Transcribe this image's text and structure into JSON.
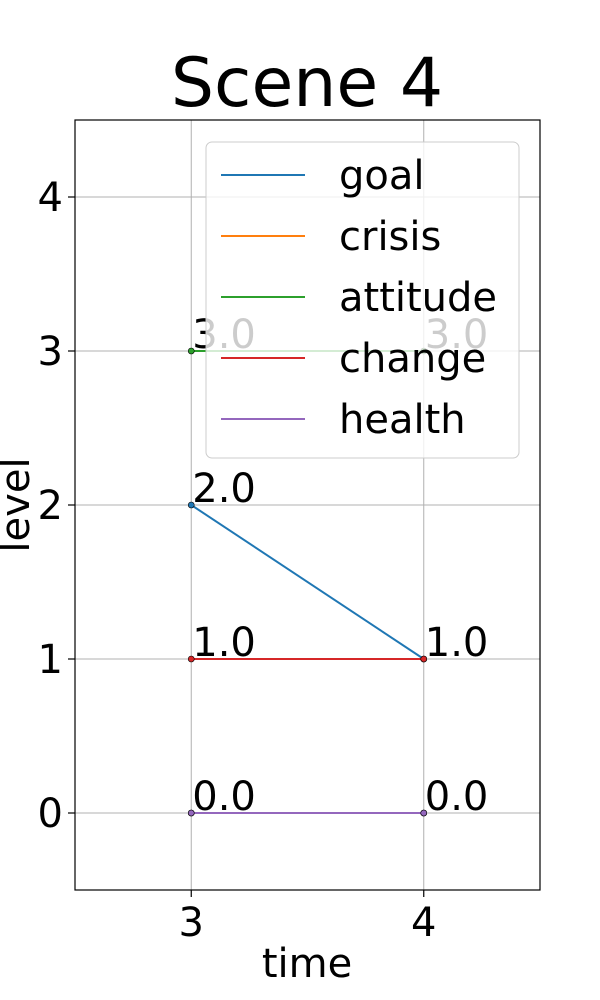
{
  "chart_data": {
    "type": "line",
    "title": "Scene 4",
    "xlabel": "time",
    "ylabel": "level",
    "xlim": [
      2.5,
      4.5
    ],
    "ylim": [
      -0.5,
      4.5
    ],
    "xticks": [
      3,
      4
    ],
    "yticks": [
      0,
      1,
      2,
      3,
      4
    ],
    "grid": true,
    "legend_position": "top-right",
    "series": [
      {
        "name": "goal",
        "color": "#1f77b4",
        "x": [
          3,
          4
        ],
        "y": [
          2.0,
          1.0
        ]
      },
      {
        "name": "crisis",
        "color": "#ff7f0e",
        "x": [
          3,
          4
        ],
        "y": [
          0.0,
          0.0
        ]
      },
      {
        "name": "attitude",
        "color": "#2ca02c",
        "x": [
          3,
          4
        ],
        "y": [
          3.0,
          3.0
        ]
      },
      {
        "name": "change",
        "color": "#d62728",
        "x": [
          3,
          4
        ],
        "y": [
          1.0,
          1.0
        ]
      },
      {
        "name": "health",
        "color": "#9467bd",
        "x": [
          3,
          4
        ],
        "y": [
          0.0,
          0.0
        ]
      }
    ],
    "point_labels": [
      {
        "x": 3,
        "y": 3.0,
        "text": "3.0"
      },
      {
        "x": 4,
        "y": 3.0,
        "text": "3.0"
      },
      {
        "x": 3,
        "y": 2.0,
        "text": "2.0"
      },
      {
        "x": 3,
        "y": 1.0,
        "text": "1.0"
      },
      {
        "x": 4,
        "y": 1.0,
        "text": "1.0"
      },
      {
        "x": 3,
        "y": 0.0,
        "text": "0.0"
      },
      {
        "x": 4,
        "y": 0.0,
        "text": "0.0"
      }
    ]
  }
}
